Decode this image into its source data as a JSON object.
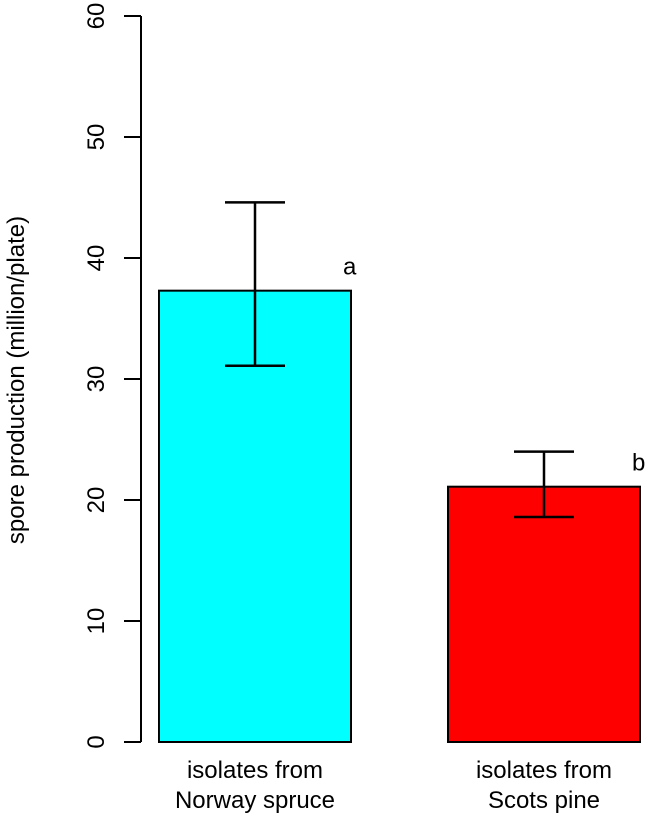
{
  "chart_data": {
    "type": "bar",
    "ylabel": "spore production  (million/plate)",
    "ylim": [
      0,
      60
    ],
    "yticks": [
      0,
      10,
      20,
      30,
      40,
      50,
      60
    ],
    "grid": false,
    "legend": "none",
    "categories": [
      {
        "lines": [
          "isolates from",
          "Norway spruce"
        ]
      },
      {
        "lines": [
          "isolates from",
          "Scots pine"
        ]
      }
    ],
    "series": [
      {
        "values": [
          37.3,
          21.1
        ],
        "error_low": [
          31.1,
          18.6
        ],
        "error_high": [
          44.6,
          24.0
        ],
        "significance": [
          "a",
          "b"
        ],
        "colors": [
          "#00FFFF",
          "#FF0000"
        ]
      }
    ]
  }
}
